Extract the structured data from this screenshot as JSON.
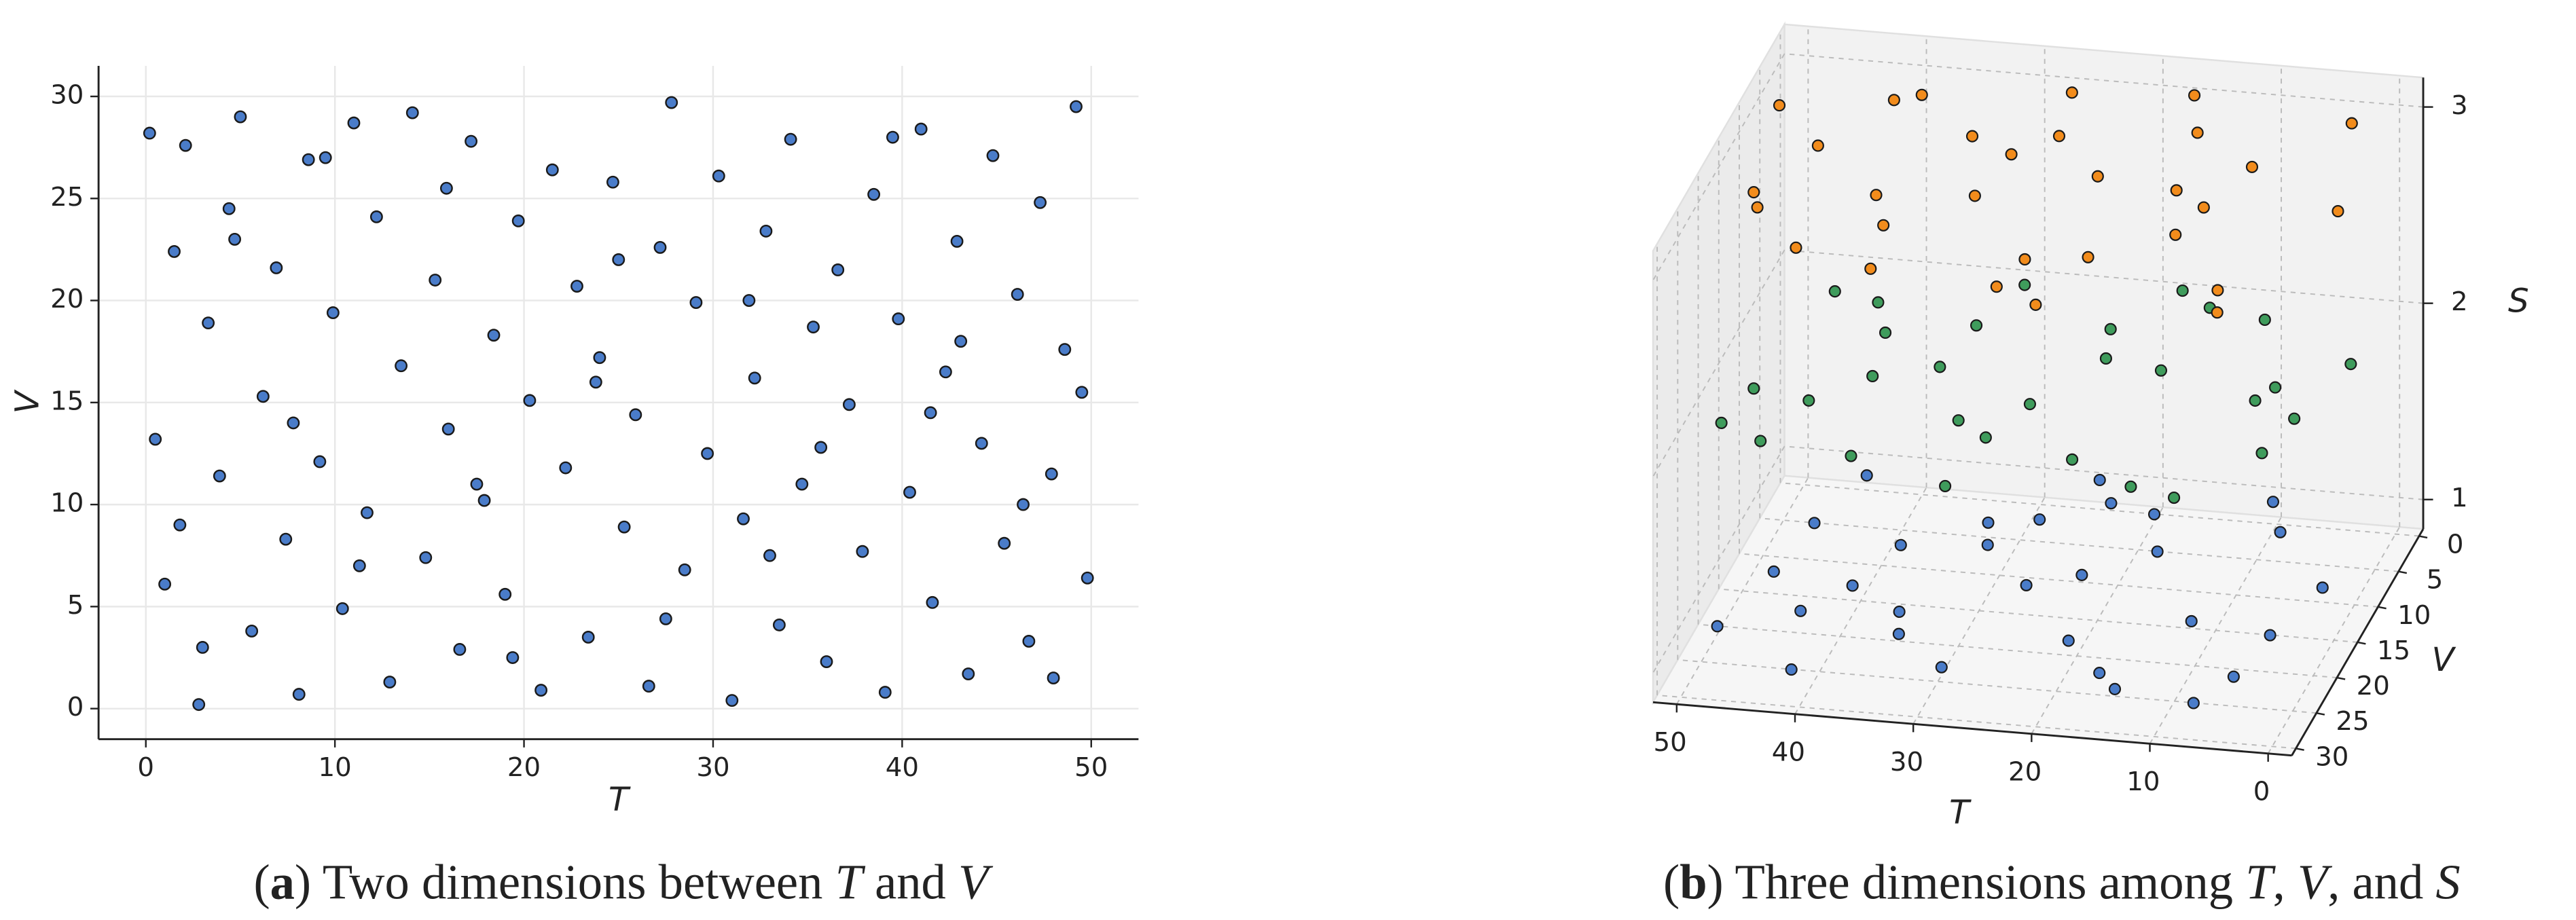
{
  "chart_data": [
    {
      "type": "scatter",
      "xlabel": "T",
      "ylabel": "V",
      "color": "#4a7cc9",
      "grid": true,
      "xlim": [
        -2.5,
        52.5
      ],
      "ylim": [
        -1.5,
        31.5
      ],
      "xticks": [
        0,
        10,
        20,
        30,
        40,
        50
      ],
      "yticks": [
        0,
        5,
        10,
        15,
        20,
        25,
        30
      ],
      "caption": [
        "(",
        "a",
        ") Two dimensions between ",
        "T",
        " and ",
        "V"
      ],
      "x": [
        0.2,
        0.5,
        1.0,
        1.5,
        2.1,
        2.8,
        3.3,
        3.9,
        4.4,
        5.0,
        5.6,
        6.2,
        6.9,
        7.4,
        8.1,
        8.6,
        9.2,
        9.9,
        10.4,
        11.0,
        11.7,
        12.2,
        12.9,
        13.5,
        14.1,
        14.8,
        15.3,
        16.0,
        16.6,
        17.2,
        17.9,
        18.4,
        19.0,
        19.7,
        20.3,
        20.9,
        21.5,
        22.2,
        22.8,
        23.4,
        24.0,
        24.7,
        25.3,
        25.9,
        26.6,
        27.2,
        27.8,
        28.5,
        29.1,
        29.7,
        30.3,
        31.0,
        31.6,
        32.2,
        32.8,
        33.5,
        34.1,
        34.7,
        35.3,
        36.0,
        36.6,
        37.2,
        37.9,
        38.5,
        39.1,
        39.8,
        40.4,
        41.0,
        41.6,
        42.3,
        42.9,
        43.5,
        44.2,
        44.8,
        45.4,
        46.1,
        46.7,
        47.3,
        47.9,
        48.6,
        49.2,
        49.8,
        1.8,
        4.7,
        7.8,
        11.3,
        15.9,
        19.4,
        23.8,
        27.5,
        31.9,
        35.7,
        39.5,
        43.1,
        46.4,
        49.5,
        3.0,
        9.5,
        17.5,
        25.0,
        33.0,
        41.5,
        48.0
      ],
      "y": [
        28.2,
        13.2,
        6.1,
        22.4,
        27.6,
        0.2,
        18.9,
        11.4,
        24.5,
        29.0,
        3.8,
        15.3,
        21.6,
        8.3,
        0.7,
        26.9,
        12.1,
        19.4,
        4.9,
        28.7,
        9.6,
        24.1,
        1.3,
        16.8,
        29.2,
        7.4,
        21.0,
        13.7,
        2.9,
        27.8,
        10.2,
        18.3,
        5.6,
        23.9,
        15.1,
        0.9,
        26.4,
        11.8,
        20.7,
        3.5,
        17.2,
        25.8,
        8.9,
        14.4,
        1.1,
        22.6,
        29.7,
        6.8,
        19.9,
        12.5,
        26.1,
        0.4,
        9.3,
        16.2,
        23.4,
        4.1,
        27.9,
        11.0,
        18.7,
        2.3,
        21.5,
        14.9,
        7.7,
        25.2,
        0.8,
        19.1,
        10.6,
        28.4,
        5.2,
        16.5,
        22.9,
        1.7,
        13.0,
        27.1,
        8.1,
        20.3,
        3.3,
        24.8,
        11.5,
        17.6,
        29.5,
        6.4,
        9.0,
        23.0,
        14.0,
        7.0,
        25.5,
        2.5,
        16.0,
        4.4,
        20.0,
        12.8,
        28.0,
        18.0,
        10.0,
        15.5,
        3.0,
        27.0,
        11.0,
        22.0,
        7.5,
        14.5,
        1.5
      ]
    },
    {
      "type": "scatter3d",
      "xlabel": "T",
      "ylabel": "V",
      "zlabel": "S",
      "xlim": [
        -2,
        52
      ],
      "ylim": [
        -1,
        31
      ],
      "zlim": [
        0.85,
        3.15
      ],
      "xticks": [
        0,
        10,
        20,
        30,
        40,
        50
      ],
      "yticks": [
        0,
        5,
        10,
        15,
        20,
        25,
        30
      ],
      "zticks": [
        1,
        2,
        3
      ],
      "caption": [
        "(",
        "b",
        ") Three dimensions among ",
        "T",
        ", ",
        "V",
        ", and ",
        "S"
      ],
      "series": [
        {
          "color": "#4a7cc9",
          "z": 1,
          "x": [
            2,
            5,
            8,
            11,
            14,
            17,
            20,
            23,
            26,
            29,
            32,
            35,
            38,
            41,
            44,
            47,
            49,
            4,
            10,
            16,
            22,
            28,
            34,
            40,
            46,
            7,
            19,
            31,
            43,
            25
          ],
          "y": [
            12,
            25,
            5,
            18,
            28,
            9,
            22,
            3,
            15,
            27,
            7,
            20,
            11,
            29,
            2,
            16,
            24,
            19,
            1,
            26,
            13,
            6,
            23,
            17,
            9,
            29,
            4,
            10,
            21,
            0
          ]
        },
        {
          "color": "#3f9c5c",
          "z": 2,
          "x": [
            1,
            4,
            7,
            10,
            13,
            16,
            19,
            22,
            25,
            28,
            31,
            34,
            37,
            40,
            43,
            46,
            49,
            3,
            9,
            15,
            21,
            27,
            33,
            39,
            45,
            6,
            18,
            30,
            42,
            48
          ],
          "y": [
            8,
            21,
            14,
            3,
            27,
            11,
            24,
            6,
            17,
            29,
            1,
            13,
            26,
            9,
            19,
            4,
            23,
            16,
            28,
            2,
            10,
            22,
            7,
            15,
            25,
            12,
            0,
            20,
            5,
            18
          ]
        },
        {
          "color": "#f28c1c",
          "z": 3,
          "x": [
            0,
            3,
            6,
            9,
            12,
            15,
            18,
            21,
            24,
            27,
            30,
            33,
            36,
            39,
            42,
            45,
            48,
            50,
            5,
            11,
            17,
            23,
            29,
            35,
            41,
            47,
            14,
            26,
            38,
            20
          ],
          "y": [
            14,
            2,
            26,
            9,
            19,
            5,
            23,
            12,
            28,
            1,
            16,
            8,
            21,
            3,
            25,
            11,
            18,
            6,
            29,
            15,
            0,
            24,
            10,
            27,
            4,
            20,
            13,
            7,
            17,
            30
          ]
        }
      ]
    }
  ]
}
